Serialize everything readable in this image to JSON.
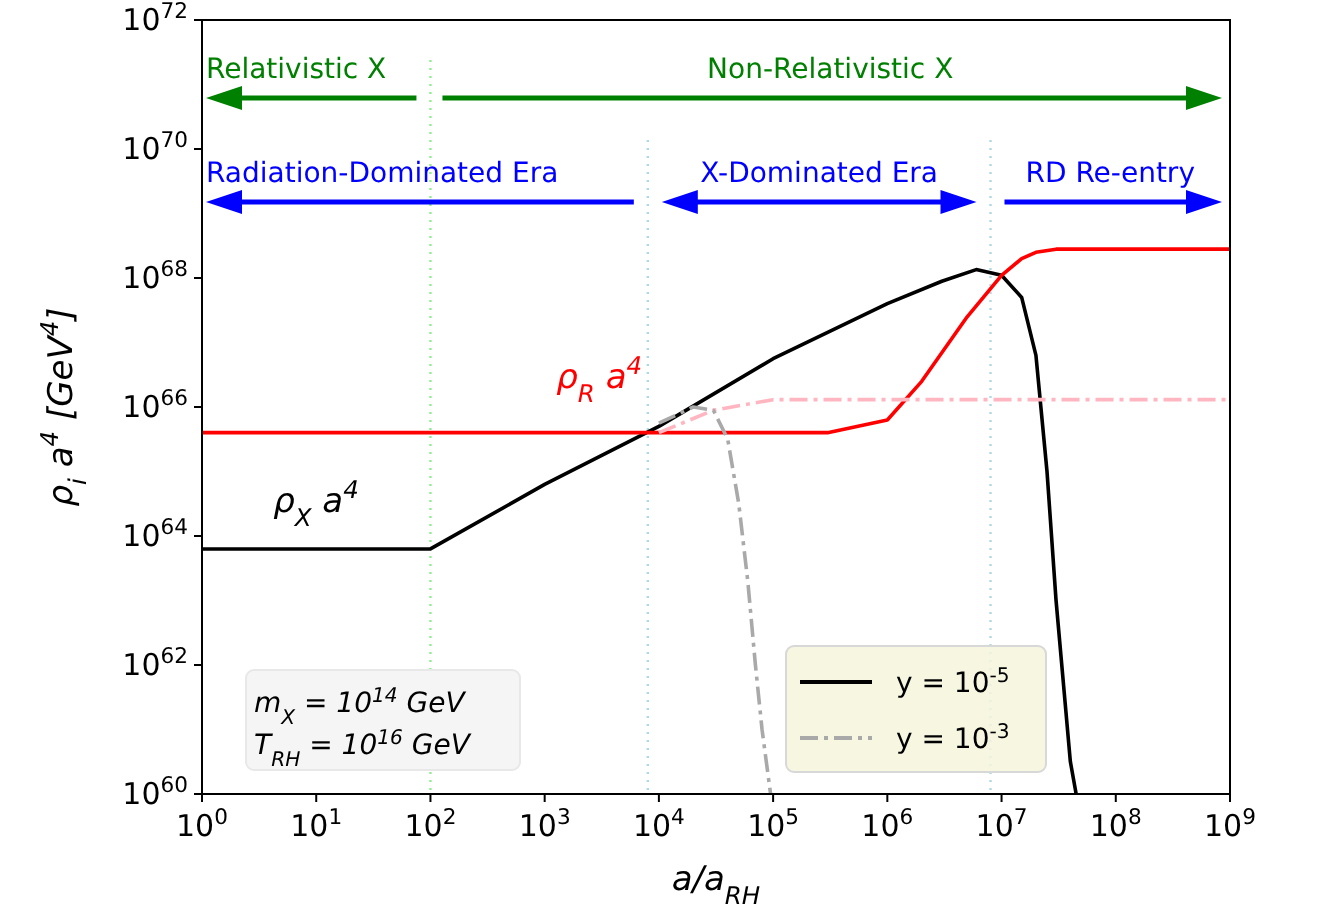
{
  "chart_data": {
    "type": "line",
    "log": "xy",
    "xlabel": "a/a$_{RH}$",
    "ylabel": "ρ$_{i}$ a$^{4}$ [GeV$^{4}$]",
    "xlim": [
      1,
      1000000000.0
    ],
    "ylim": [
      1e+60,
      1e+72
    ],
    "xticks": [
      {
        "value": 1,
        "label": "10$^{0}$"
      },
      {
        "value": 10,
        "label": "10$^{1}$"
      },
      {
        "value": 100,
        "label": "10$^{2}$"
      },
      {
        "value": 1000,
        "label": "10$^{3}$"
      },
      {
        "value": 10000.0,
        "label": "10$^{4}$"
      },
      {
        "value": 100000.0,
        "label": "10$^{5}$"
      },
      {
        "value": 1000000.0,
        "label": "10$^{6}$"
      },
      {
        "value": 10000000.0,
        "label": "10$^{7}$"
      },
      {
        "value": 100000000.0,
        "label": "10$^{8}$"
      },
      {
        "value": 1000000000.0,
        "label": "10$^{9}$"
      }
    ],
    "yticks": [
      {
        "value": 1e+60,
        "label": "10$^{60}$"
      },
      {
        "value": 1e+62,
        "label": "10$^{62}$"
      },
      {
        "value": 1e+64,
        "label": "10$^{64}$"
      },
      {
        "value": 1e+66,
        "label": "10$^{66}$"
      },
      {
        "value": 1e+68,
        "label": "10$^{68}$"
      },
      {
        "value": 1e+70,
        "label": "10$^{70}$"
      },
      {
        "value": 1e+72,
        "label": "10$^{72}$"
      }
    ],
    "grid": false,
    "legend": "bottom right",
    "marker": "none",
    "series": [
      {
        "name": "y = 10$^{-5}$",
        "color": "#000000",
        "line_style": "solid",
        "x": [
          1,
          100,
          1000,
          10000.0,
          100000.0,
          1000000.0,
          3000000.0,
          6000000.0,
          10000000.0,
          15000000.0,
          20000000.0,
          25000000.0,
          30000000.0,
          40000000.0,
          45000000.0
        ],
        "values": [
          6.3e+63,
          6.3e+63,
          6.3e+64,
          5e+65,
          5.6e+66,
          4e+67,
          8.9e+67,
          1.35e+68,
          1.1e+68,
          5e+67,
          6.3e+66,
          1e+65,
          1e+63,
          3.2e+60,
          1e+60
        ]
      },
      {
        "name": "ρ$_{R}$ a$^{4}$",
        "color": "#ff0000",
        "line_style": "solid",
        "x": [
          1,
          300000.0,
          1000000.0,
          2000000.0,
          5000000.0,
          10000000.0,
          15000000.0,
          20000000.0,
          30000000.0,
          1000000000.0
        ],
        "values": [
          4e+65,
          4e+65,
          6.3e+65,
          2.5e+66,
          2.5e+67,
          1.1e+68,
          2e+68,
          2.5e+68,
          2.8e+68,
          2.8e+68
        ]
      },
      {
        "color": "#ffb6c1",
        "line_style": "dashed",
        "x": [
          10000.0,
          30000.0,
          100000.0,
          1000000000.0
        ],
        "values": [
          4e+65,
          8.9e+65,
          1.3e+66,
          1.3e+66
        ]
      },
      {
        "name": "y = 10$^{-3}$",
        "color": "#a9a9a9",
        "line_style": "dashed",
        "x": [
          10000.0,
          20000.0,
          30000.0,
          40000.0,
          50000.0,
          60000.0,
          70000.0,
          80000.0,
          95000.0
        ],
        "values": [
          5.6e+65,
          1e+66,
          8.9e+65,
          3.2e+65,
          3.2e+64,
          2e+63,
          1e+62,
          1e+61,
          1e+60
        ]
      }
    ],
    "ref_lines": [
      {
        "axis": "x",
        "value": 100,
        "color": "#90ee90",
        "line_style": "dotted"
      },
      {
        "axis": "x",
        "value": 8000,
        "color": "#add8e6",
        "line_style": "dotted"
      },
      {
        "axis": "x",
        "value": 8000000.0,
        "color": "#add8e6",
        "line_style": "dotted"
      }
    ],
    "annotations": [
      "Relativistic X",
      "Non-Relativistic X",
      "Radiation-Dominated Era",
      "X-Dominated Era",
      "RD Re-entry",
      "m$_{X}$ = 10$^{14}$ GeV",
      "T$_{RH}$ = 10$^{16}$ GeV",
      "ρ$_{X}$ a$^{4}$"
    ]
  }
}
